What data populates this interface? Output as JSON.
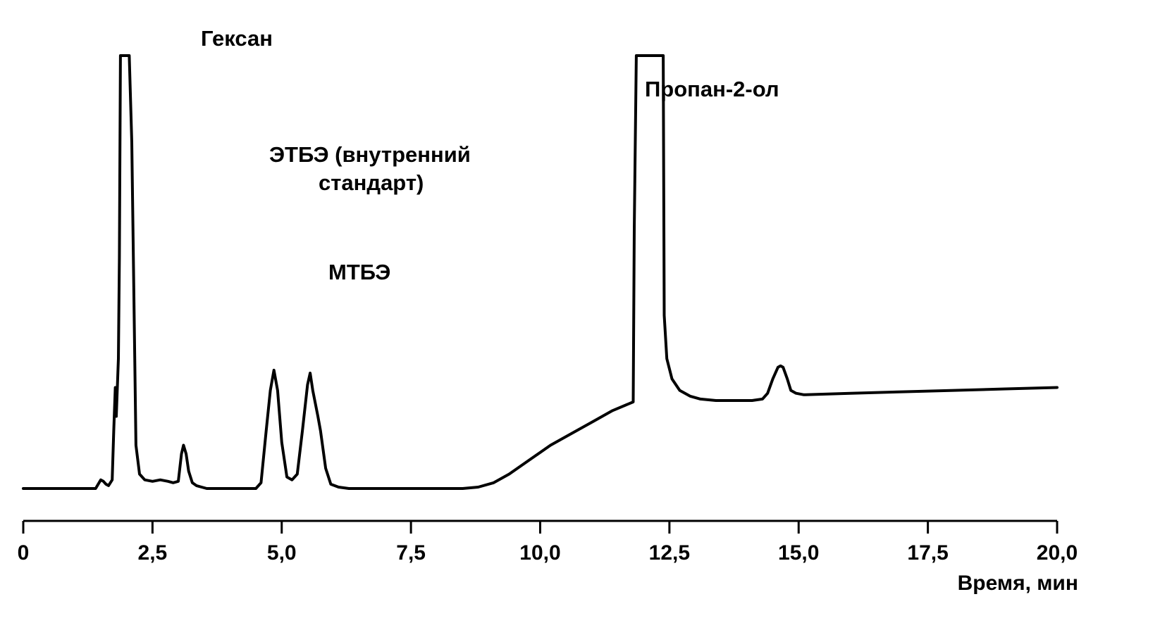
{
  "chart_data": {
    "type": "line",
    "title": "",
    "xlabel": "Время, мин",
    "ylabel": "",
    "xlim": [
      0,
      20
    ],
    "x_ticks": [
      0,
      2.5,
      5,
      7.5,
      10,
      12.5,
      15,
      17.5,
      20
    ],
    "x_tick_labels": [
      "0",
      "2,5",
      "5,0",
      "7,5",
      "10,0",
      "12,5",
      "15,0",
      "17,5",
      "20,0"
    ],
    "grid": false,
    "legend": "none",
    "series": [
      {
        "x": [
          0,
          1.4,
          1.5,
          1.55,
          1.6,
          1.65,
          1.72,
          1.75,
          1.78,
          1.8,
          1.8,
          1.84,
          1.86,
          1.88,
          1.9,
          1.92,
          1.98,
          2.05,
          2.1,
          2.18,
          2.25,
          2.35,
          2.5,
          2.65,
          2.8,
          2.9,
          3.0,
          3.06,
          3.1,
          3.15,
          3.2,
          3.27,
          3.35,
          3.45,
          3.55,
          4.5,
          4.6,
          4.7,
          4.78,
          4.85,
          4.92,
          5.0,
          5.1,
          5.2,
          5.3,
          5.4,
          5.5,
          5.55,
          5.6,
          5.7,
          5.75,
          5.85,
          5.95,
          6.1,
          6.3,
          6.8,
          8.5,
          8.8,
          9.1,
          9.4,
          9.8,
          10.2,
          10.6,
          11.0,
          11.4,
          11.8,
          11.82,
          11.86,
          12.35,
          12.38,
          12.4,
          12.45,
          12.55,
          12.7,
          12.9,
          13.1,
          13.4,
          13.8,
          14.1,
          14.3,
          14.4,
          14.5,
          14.6,
          14.65,
          14.7,
          14.78,
          14.85,
          14.95,
          15.1,
          16.0,
          17.0,
          18.0,
          19.0,
          20.0
        ],
        "y": [
          0,
          0,
          0.03,
          0.025,
          0.015,
          0.01,
          0.03,
          0.2,
          0.35,
          0.32,
          0.25,
          0.45,
          0.8,
          1.5,
          1.5,
          1.5,
          1.5,
          1.5,
          1.2,
          0.15,
          0.05,
          0.03,
          0.025,
          0.03,
          0.025,
          0.02,
          0.025,
          0.12,
          0.15,
          0.12,
          0.06,
          0.02,
          0.01,
          0.005,
          0,
          0,
          0.02,
          0.2,
          0.34,
          0.41,
          0.34,
          0.16,
          0.04,
          0.03,
          0.05,
          0.2,
          0.36,
          0.4,
          0.34,
          0.25,
          0.2,
          0.07,
          0.015,
          0.005,
          0,
          0,
          0,
          0.005,
          0.02,
          0.05,
          0.1,
          0.15,
          0.19,
          0.23,
          0.27,
          0.3,
          0.9,
          1.5,
          1.5,
          1.5,
          0.6,
          0.45,
          0.38,
          0.34,
          0.32,
          0.31,
          0.305,
          0.305,
          0.305,
          0.31,
          0.33,
          0.38,
          0.42,
          0.425,
          0.42,
          0.38,
          0.34,
          0.33,
          0.325,
          0.33,
          0.335,
          0.34,
          0.345,
          0.35
        ]
      }
    ],
    "annotations": [
      {
        "id": "hexane",
        "text": "Гексан",
        "x": 2.2,
        "y": 1.5
      },
      {
        "id": "etbe1",
        "text": "ЭТБЭ (внутренний",
        "x": 4.85,
        "y": 0.41
      },
      {
        "id": "etbe2",
        "text": "стандарт)",
        "x": 4.85,
        "y": 0.41
      },
      {
        "id": "mtbe",
        "text": "МТБЭ",
        "x": 5.6,
        "y": 0.4
      },
      {
        "id": "propanol",
        "text": "Пропан-2-ол",
        "x": 12.0,
        "y": 1.5
      }
    ]
  }
}
